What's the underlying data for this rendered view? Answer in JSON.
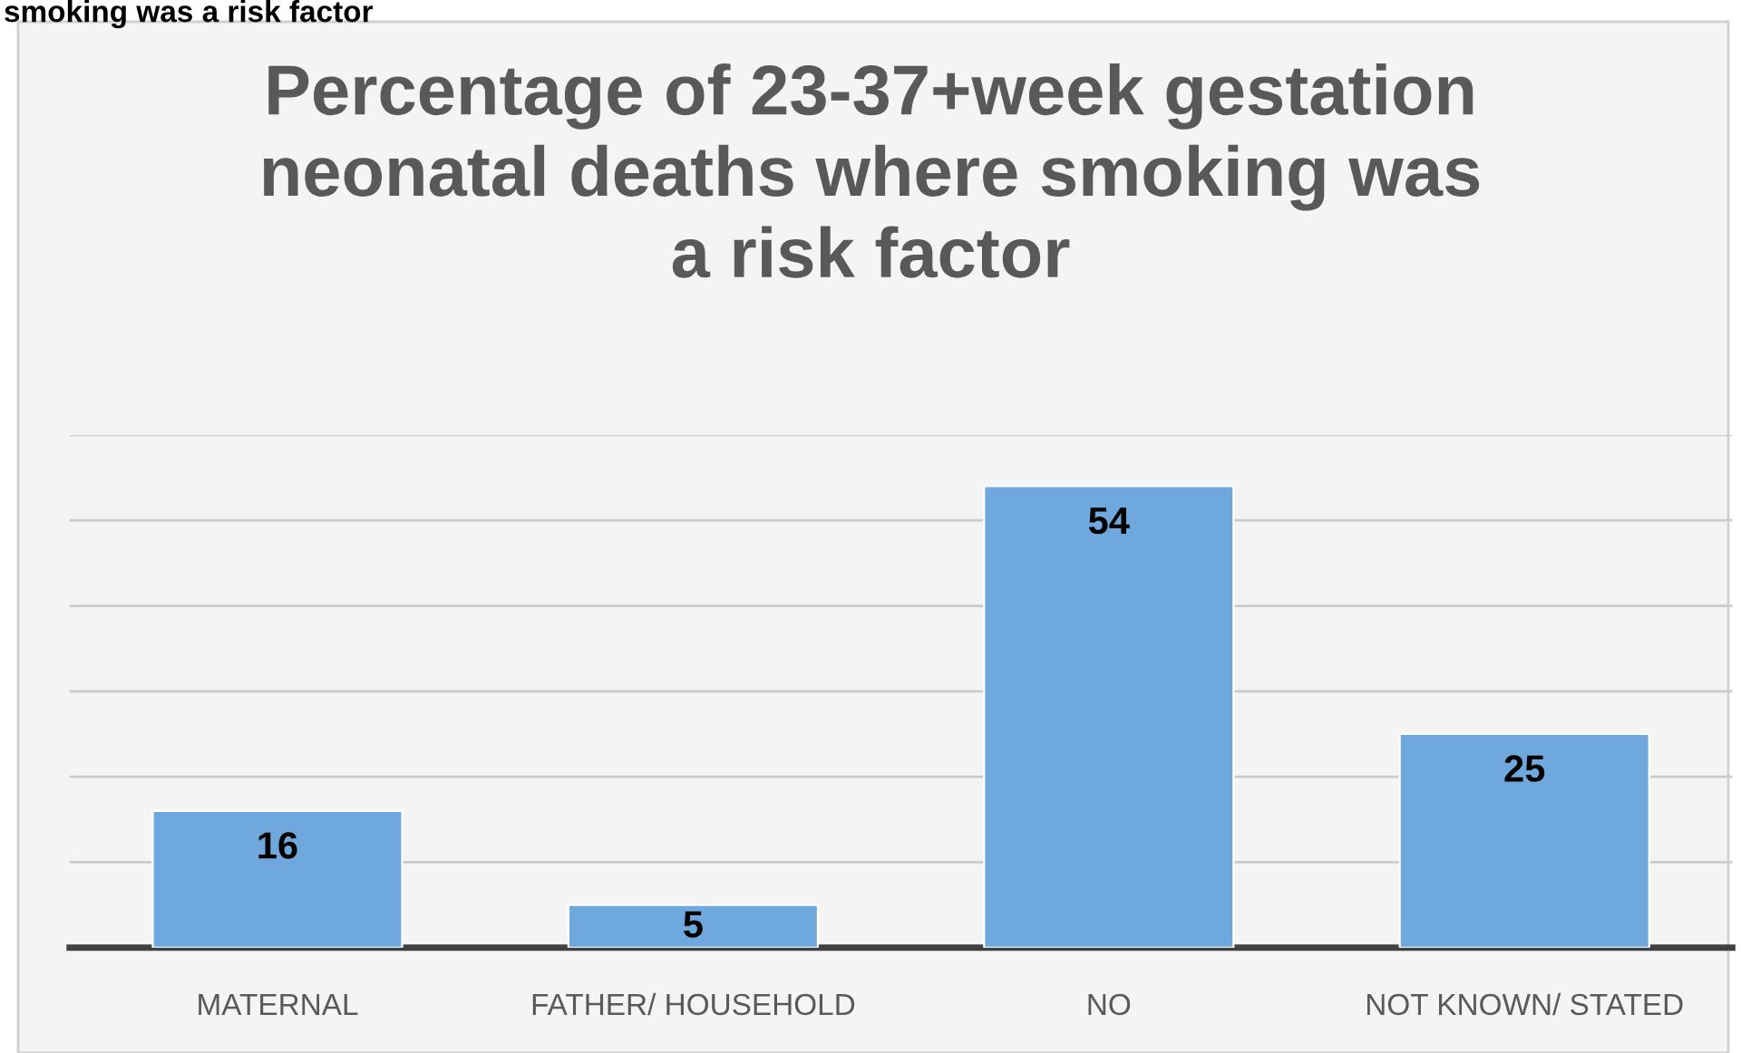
{
  "chart_data": {
    "type": "bar",
    "title": "Percentage of 23-37+week gestation neonatal deaths where smoking was a risk factor",
    "annotations": [
      "smoking was a risk factor"
    ],
    "categories": [
      "MATERNAL",
      "FATHER/ HOUSEHOLD",
      "NO",
      "NOT KNOWN/ STATED"
    ],
    "values": [
      16,
      5,
      54,
      25
    ],
    "color": "#6fa8dc",
    "ylim": [
      0,
      60
    ],
    "yticks": [
      {
        "value": 0,
        "label": null
      },
      {
        "value": 10,
        "label": null
      },
      {
        "value": 20,
        "label": null
      },
      {
        "value": 30,
        "label": null
      },
      {
        "value": 40,
        "label": null
      },
      {
        "value": 50,
        "label": null
      },
      {
        "value": 60,
        "label": null
      }
    ],
    "tick_labels": "x",
    "grid": "y",
    "data_labels": true,
    "legend": false
  }
}
